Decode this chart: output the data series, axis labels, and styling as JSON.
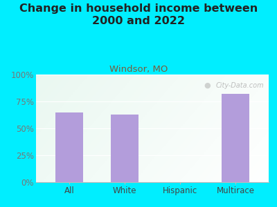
{
  "title": "Change in household income between\n2000 and 2022",
  "subtitle": "Windsor, MO",
  "categories": [
    "All",
    "White",
    "Hispanic",
    "Multirace"
  ],
  "values": [
    65,
    63,
    0,
    82
  ],
  "bar_color": "#b39ddb",
  "title_color": "#222222",
  "subtitle_color": "#7a5c3a",
  "ytick_color": "#777777",
  "xtick_color": "#444444",
  "background_color": "#00eeff",
  "plot_bg_left": "#e0f0e8",
  "plot_bg_right": "#f5f9f5",
  "ylim": [
    0,
    100
  ],
  "yticks": [
    0,
    25,
    50,
    75,
    100
  ],
  "ytick_labels": [
    "0%",
    "25%",
    "50%",
    "75%",
    "100%"
  ],
  "title_fontsize": 11.5,
  "subtitle_fontsize": 9.5,
  "tick_fontsize": 8.5,
  "watermark": "City-Data.com"
}
